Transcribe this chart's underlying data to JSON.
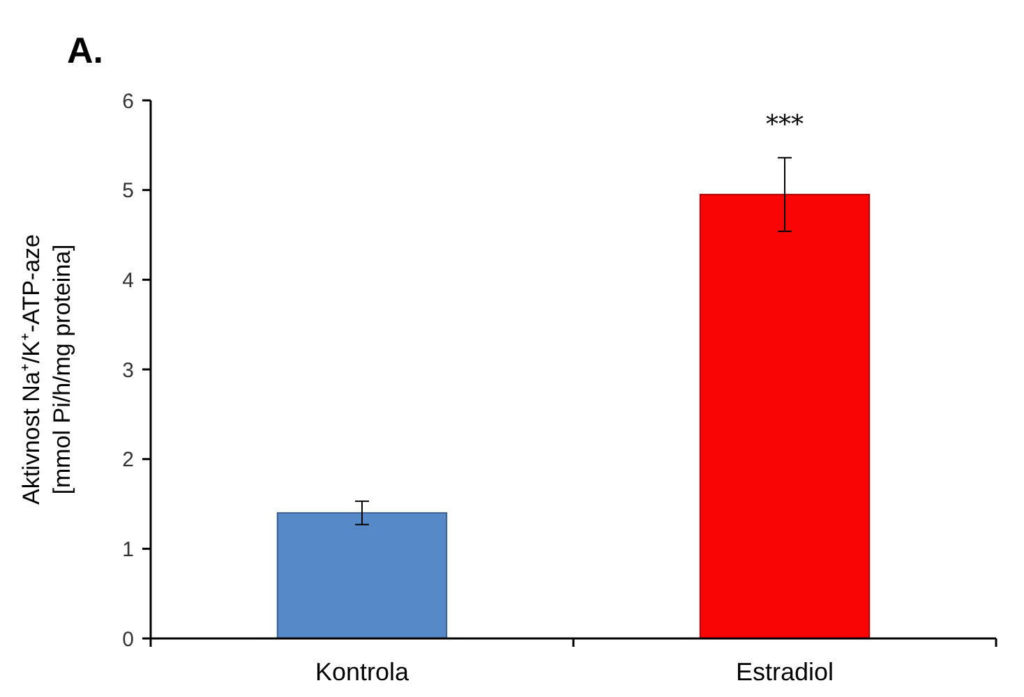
{
  "chart_data": {
    "type": "bar",
    "title": "A.",
    "ylabel": "Aktivnost Na⁺/K⁺-ATP-aze\n[mmol Pi/h/mg proteina]",
    "categories": [
      "Kontrola",
      "Estradiol"
    ],
    "values": [
      1.4,
      4.95
    ],
    "errors": [
      0.13,
      0.41
    ],
    "colors": [
      "#5589c8",
      "#fa0505"
    ],
    "ylim": [
      0,
      6
    ],
    "yticks": [
      0,
      1,
      2,
      3,
      4,
      5,
      6
    ],
    "grid": false,
    "annotations": [
      {
        "text": "***",
        "x": "Estradiol",
        "y": 5.36
      }
    ]
  }
}
